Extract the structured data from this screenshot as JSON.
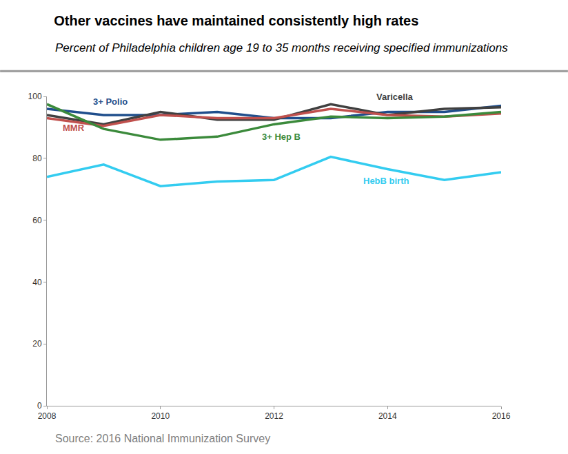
{
  "chart_data": {
    "type": "line",
    "title": "Other vaccines have maintained consistently high rates",
    "subtitle": "Percent of Philadelphia children age 19 to 35 months receiving specified immunizations",
    "source": "Source: 2016 National Immunization Survey",
    "x": [
      2008,
      2009,
      2010,
      2011,
      2012,
      2013,
      2014,
      2015,
      2016
    ],
    "series": [
      {
        "name": "3+ Polio",
        "color": "#1f4e8c",
        "values": [
          96,
          94,
          94,
          95,
          93,
          93,
          95,
          95,
          97
        ]
      },
      {
        "name": "Varicella",
        "color": "#404040",
        "values": [
          94,
          91,
          95,
          92.5,
          92.5,
          97.5,
          94,
          96,
          96.5
        ]
      },
      {
        "name": "MMR",
        "color": "#c0504d",
        "values": [
          93,
          90.5,
          94,
          93,
          93,
          96,
          94,
          93.5,
          94.5
        ]
      },
      {
        "name": "3+ Hep B",
        "color": "#3b8a3b",
        "values": [
          97.5,
          89.5,
          86,
          87,
          91,
          93.5,
          93,
          93.5,
          95
        ]
      },
      {
        "name": "HebB birth",
        "color": "#33ccf0",
        "values": [
          74,
          78,
          71,
          72.5,
          73,
          80.5,
          76.5,
          73,
          75.5
        ]
      }
    ],
    "xlim": [
      2008,
      2016
    ],
    "xticks": [
      2008,
      2010,
      2012,
      2014,
      2016
    ],
    "ylim": [
      0,
      100
    ],
    "yticks": [
      0,
      20,
      40,
      60,
      80,
      100
    ],
    "grid": false
  }
}
